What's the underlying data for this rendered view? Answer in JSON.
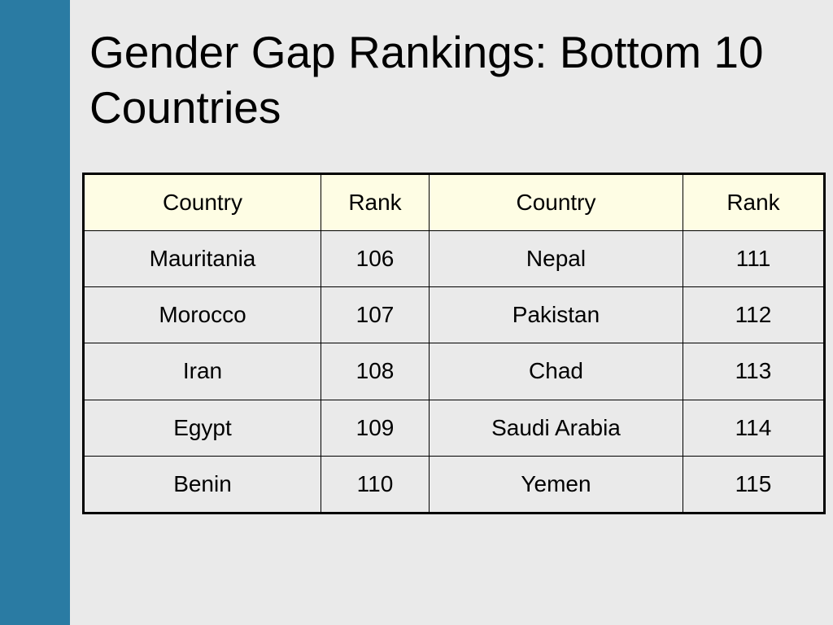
{
  "slide": {
    "title": "Gender Gap Rankings: Bottom 10 Countries",
    "colors": {
      "sidebar": "#2a7ba3",
      "background": "#eaeaea",
      "header_fill": "#fefde4"
    }
  },
  "table": {
    "headers": [
      "Country",
      "Rank",
      "Country",
      "Rank"
    ],
    "rows": [
      [
        "Mauritania",
        "106",
        "Nepal",
        "111"
      ],
      [
        "Morocco",
        "107",
        "Pakistan",
        "112"
      ],
      [
        "Iran",
        "108",
        "Chad",
        "113"
      ],
      [
        "Egypt",
        "109",
        "Saudi Arabia",
        "114"
      ],
      [
        "Benin",
        "110",
        "Yemen",
        "115"
      ]
    ]
  }
}
